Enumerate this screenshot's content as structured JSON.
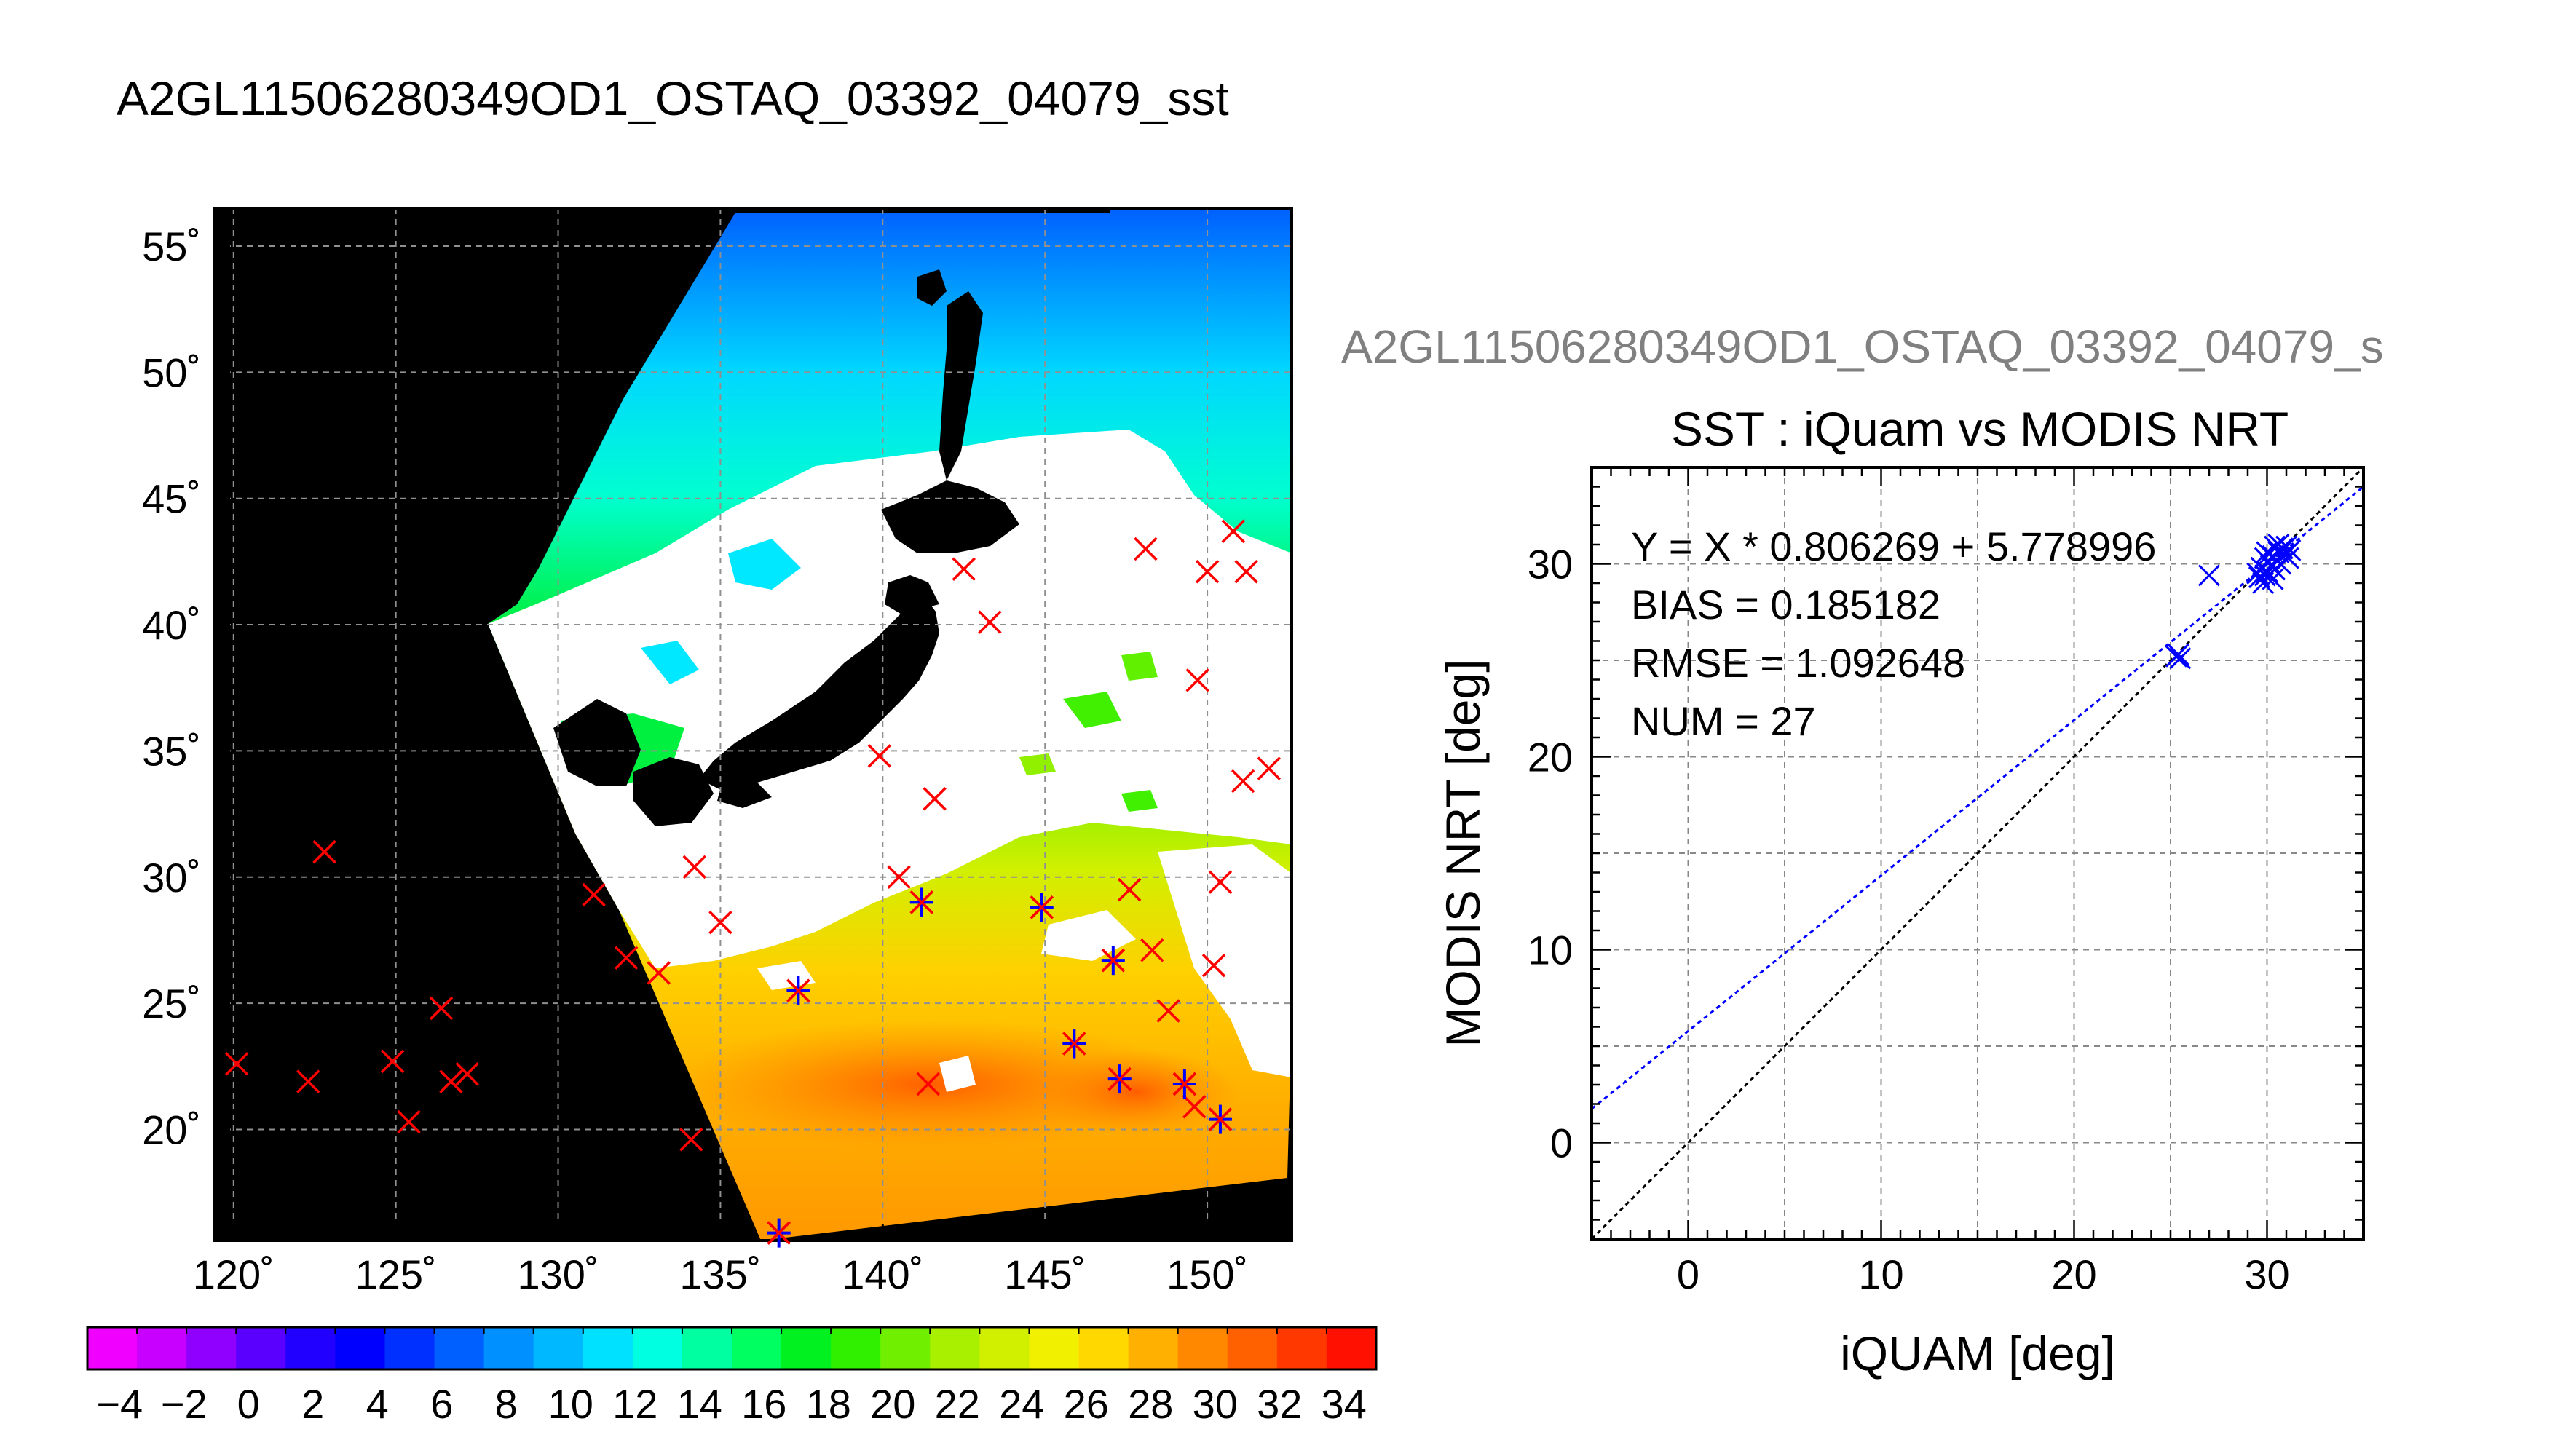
{
  "title": "A2GL11506280349OD1_OSTAQ_03392_04079_sst",
  "subtitle": "A2GL11506280349OD1_OSTAQ_03392_04079_s",
  "colors": {
    "land": "#000000",
    "cloud": "#ffffff",
    "marker_red": "#ff0000",
    "marker_blue": "#0000ff",
    "fit_line": "#0000ff",
    "identity_line": "#000000",
    "grid": "#888888",
    "subtitle_text": "#808080"
  },
  "map": {
    "lon_ticks": [
      "120˚",
      "125˚",
      "130˚",
      "135˚",
      "140˚",
      "145˚",
      "150˚"
    ],
    "lat_ticks": [
      "55˚",
      "50˚",
      "45˚",
      "40˚",
      "35˚",
      "30˚",
      "25˚",
      "20˚"
    ],
    "lon_values": [
      120,
      125,
      130,
      135,
      140,
      145,
      150
    ],
    "lat_values": [
      55,
      50,
      45,
      40,
      35,
      30,
      25,
      20
    ],
    "lon_range": [
      119.4,
      152.6
    ],
    "lat_range": [
      15.6,
      56.5
    ],
    "iquam_points": [
      {
        "lon": 120.1,
        "lat": 22.6
      },
      {
        "lon": 122.3,
        "lat": 21.9
      },
      {
        "lon": 122.8,
        "lat": 31.0
      },
      {
        "lon": 124.9,
        "lat": 22.7
      },
      {
        "lon": 125.4,
        "lat": 20.3
      },
      {
        "lon": 126.4,
        "lat": 24.8
      },
      {
        "lon": 126.7,
        "lat": 21.9
      },
      {
        "lon": 127.2,
        "lat": 22.2
      },
      {
        "lon": 131.1,
        "lat": 29.3
      },
      {
        "lon": 132.1,
        "lat": 26.8
      },
      {
        "lon": 133.1,
        "lat": 26.2
      },
      {
        "lon": 134.1,
        "lat": 19.6
      },
      {
        "lon": 134.2,
        "lat": 30.4
      },
      {
        "lon": 135.0,
        "lat": 28.2
      },
      {
        "lon": 136.8,
        "lat": 15.9
      },
      {
        "lon": 137.4,
        "lat": 25.5
      },
      {
        "lon": 139.9,
        "lat": 34.8
      },
      {
        "lon": 140.5,
        "lat": 30.0
      },
      {
        "lon": 141.2,
        "lat": 29.0
      },
      {
        "lon": 141.4,
        "lat": 21.8
      },
      {
        "lon": 141.6,
        "lat": 33.1
      },
      {
        "lon": 142.5,
        "lat": 42.2
      },
      {
        "lon": 143.3,
        "lat": 40.1
      },
      {
        "lon": 144.9,
        "lat": 28.8
      },
      {
        "lon": 145.9,
        "lat": 23.4
      },
      {
        "lon": 147.1,
        "lat": 26.7
      },
      {
        "lon": 147.3,
        "lat": 22.0
      },
      {
        "lon": 147.6,
        "lat": 29.5
      },
      {
        "lon": 148.1,
        "lat": 43.0
      },
      {
        "lon": 148.3,
        "lat": 27.1
      },
      {
        "lon": 148.8,
        "lat": 24.7
      },
      {
        "lon": 149.3,
        "lat": 21.8
      },
      {
        "lon": 149.6,
        "lat": 20.9
      },
      {
        "lon": 149.7,
        "lat": 37.8
      },
      {
        "lon": 150.0,
        "lat": 42.1
      },
      {
        "lon": 150.2,
        "lat": 26.5
      },
      {
        "lon": 150.4,
        "lat": 29.8
      },
      {
        "lon": 150.4,
        "lat": 20.4
      },
      {
        "lon": 150.8,
        "lat": 43.7
      },
      {
        "lon": 151.2,
        "lat": 42.1
      },
      {
        "lon": 151.1,
        "lat": 33.8
      },
      {
        "lon": 151.9,
        "lat": 34.3
      }
    ],
    "matchup_points": [
      {
        "lon": 136.8,
        "lat": 15.9
      },
      {
        "lon": 137.4,
        "lat": 25.5
      },
      {
        "lon": 141.2,
        "lat": 29.0
      },
      {
        "lon": 144.9,
        "lat": 28.8
      },
      {
        "lon": 145.9,
        "lat": 23.4
      },
      {
        "lon": 147.1,
        "lat": 26.7
      },
      {
        "lon": 147.3,
        "lat": 22.0
      },
      {
        "lon": 149.3,
        "lat": 21.8
      },
      {
        "lon": 150.4,
        "lat": 20.4
      }
    ]
  },
  "colorbar": {
    "labels": [
      "−4",
      "−2",
      "0",
      "2",
      "4",
      "6",
      "8",
      "10",
      "12",
      "14",
      "16",
      "18",
      "20",
      "22",
      "24",
      "26",
      "28",
      "30",
      "32",
      "34"
    ],
    "min": -5,
    "max": 35,
    "colors": [
      "#f000ff",
      "#c800ff",
      "#9000ff",
      "#5a00ff",
      "#2200ff",
      "#0000ff",
      "#0030ff",
      "#0060ff",
      "#0090ff",
      "#00b8ff",
      "#00e0ff",
      "#00ffe0",
      "#00ffa0",
      "#00ff60",
      "#00f020",
      "#30f000",
      "#70f000",
      "#a8f000",
      "#d0f000",
      "#f0f000",
      "#ffd800",
      "#ffb000",
      "#ff8800",
      "#ff6000",
      "#ff3800",
      "#ff1000"
    ]
  },
  "chart_data": {
    "type": "scatter",
    "title": "SST : iQuam vs MODIS NRT",
    "xlabel": "iQUAM [deg]",
    "ylabel": "MODIS NRT [deg]",
    "xlim": [
      -5,
      35
    ],
    "ylim": [
      -5,
      35
    ],
    "xticks": [
      0,
      10,
      20,
      30
    ],
    "yticks": [
      0,
      10,
      20,
      30
    ],
    "grid": true,
    "annotations": [
      "Y = X * 0.806269 + 5.778996",
      "BIAS = 0.185182",
      "RMSE = 1.092648",
      "NUM = 27"
    ],
    "fit": {
      "slope": 0.806269,
      "intercept": 5.778996
    },
    "identity_line": true,
    "points": [
      {
        "x": 25.3,
        "y": 25.2
      },
      {
        "x": 25.5,
        "y": 25.1
      },
      {
        "x": 25.4,
        "y": 25.3
      },
      {
        "x": 27.0,
        "y": 29.4
      },
      {
        "x": 29.6,
        "y": 29.3
      },
      {
        "x": 29.8,
        "y": 29.0
      },
      {
        "x": 29.7,
        "y": 29.8
      },
      {
        "x": 29.9,
        "y": 30.3
      },
      {
        "x": 30.0,
        "y": 29.6
      },
      {
        "x": 30.1,
        "y": 30.1
      },
      {
        "x": 30.2,
        "y": 29.9
      },
      {
        "x": 30.3,
        "y": 30.4
      },
      {
        "x": 30.4,
        "y": 29.7
      },
      {
        "x": 30.5,
        "y": 30.2
      },
      {
        "x": 30.6,
        "y": 30.6
      },
      {
        "x": 30.7,
        "y": 30.0
      },
      {
        "x": 30.8,
        "y": 30.8
      },
      {
        "x": 30.9,
        "y": 30.5
      },
      {
        "x": 31.0,
        "y": 30.9
      },
      {
        "x": 31.1,
        "y": 30.3
      },
      {
        "x": 29.5,
        "y": 29.5
      },
      {
        "x": 30.0,
        "y": 30.6
      },
      {
        "x": 30.3,
        "y": 29.2
      },
      {
        "x": 30.6,
        "y": 31.0
      },
      {
        "x": 31.2,
        "y": 30.7
      },
      {
        "x": 29.9,
        "y": 29.4
      },
      {
        "x": 30.4,
        "y": 30.9
      }
    ]
  }
}
